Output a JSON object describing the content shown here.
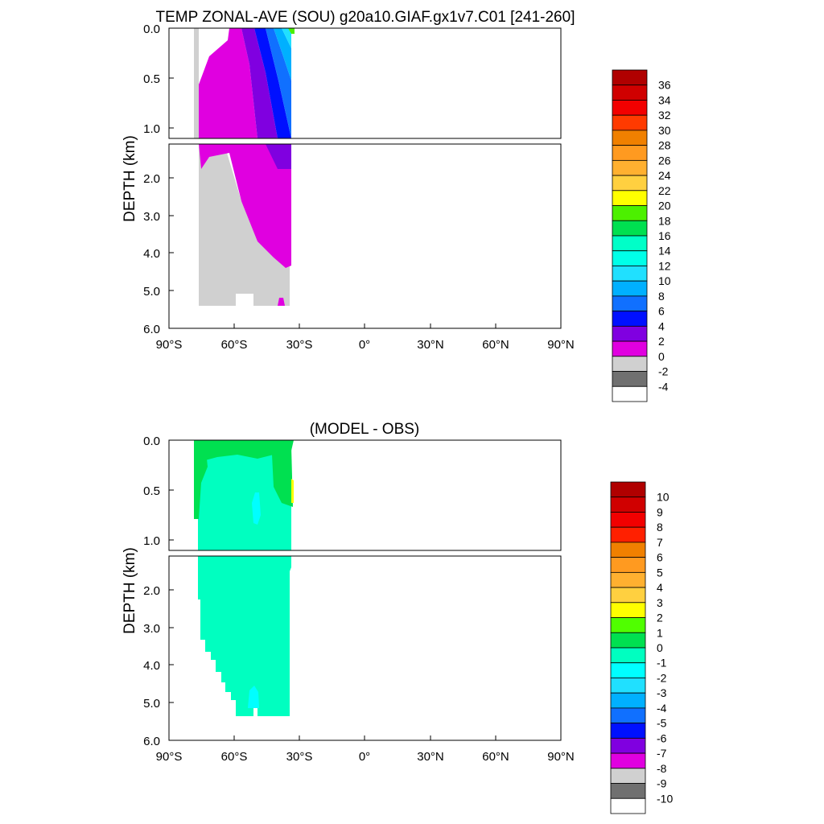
{
  "chart_data": [
    {
      "type": "heatmap",
      "title": "TEMP ZONAL-AVE (SOU) g20a10.GIAF.gx1v7.C01 [241-260]",
      "ylabel": "DEPTH (km)",
      "x_ticks": [
        "90°S",
        "60°S",
        "30°S",
        "0°",
        "30°N",
        "60°N",
        "90°N"
      ],
      "x_range": [
        -90,
        90
      ],
      "y_ticks_upper": [
        "0.0",
        "0.5",
        "1.0"
      ],
      "y_ticks_lower": [
        "2.0",
        "3.0",
        "4.0",
        "5.0",
        "6.0"
      ],
      "y_range_km": [
        0,
        6
      ],
      "data_extent_lat": [
        -78,
        -34
      ],
      "colorbar": {
        "labels": [
          "36",
          "34",
          "32",
          "30",
          "28",
          "26",
          "24",
          "22",
          "20",
          "18",
          "16",
          "14",
          "12",
          "10",
          "8",
          "6",
          "4",
          "2",
          "0",
          "-2",
          "-4"
        ],
        "colors": [
          "#b00000",
          "#d00000",
          "#f20000",
          "#ff3a00",
          "#f08000",
          "#ff9a20",
          "#ffb030",
          "#ffd040",
          "#ffff00",
          "#4cf000",
          "#00e050",
          "#00ffc8",
          "#00ffe8",
          "#20e0ff",
          "#00b0ff",
          "#1070ff",
          "#0010ff",
          "#8000e0",
          "#e000e0",
          "#d0d0d0",
          "#707070",
          "#ffffff"
        ]
      }
    },
    {
      "type": "heatmap",
      "title": "(MODEL - OBS)",
      "ylabel": "DEPTH (km)",
      "x_ticks": [
        "90°S",
        "60°S",
        "30°S",
        "0°",
        "30°N",
        "60°N",
        "90°N"
      ],
      "x_range": [
        -90,
        90
      ],
      "y_ticks_upper": [
        "0.0",
        "0.5",
        "1.0"
      ],
      "y_ticks_lower": [
        "2.0",
        "3.0",
        "4.0",
        "5.0",
        "6.0"
      ],
      "y_range_km": [
        0,
        6
      ],
      "data_extent_lat": [
        -78,
        -34
      ],
      "colorbar": {
        "labels": [
          "10",
          "9",
          "8",
          "7",
          "6",
          "5",
          "4",
          "3",
          "2",
          "1",
          "0",
          "-1",
          "-2",
          "-3",
          "-4",
          "-5",
          "-6",
          "-7",
          "-8",
          "-9",
          "-10"
        ],
        "colors": [
          "#b00000",
          "#d00000",
          "#f20000",
          "#ff2000",
          "#f08000",
          "#ff9a20",
          "#ffb030",
          "#ffd040",
          "#ffff00",
          "#50ff00",
          "#00e050",
          "#00ffc0",
          "#00ffff",
          "#20e0ff",
          "#00b0ff",
          "#1070ff",
          "#0010ff",
          "#8000e0",
          "#e000e0",
          "#d0d0d0",
          "#707070",
          "#ffffff"
        ]
      }
    }
  ]
}
